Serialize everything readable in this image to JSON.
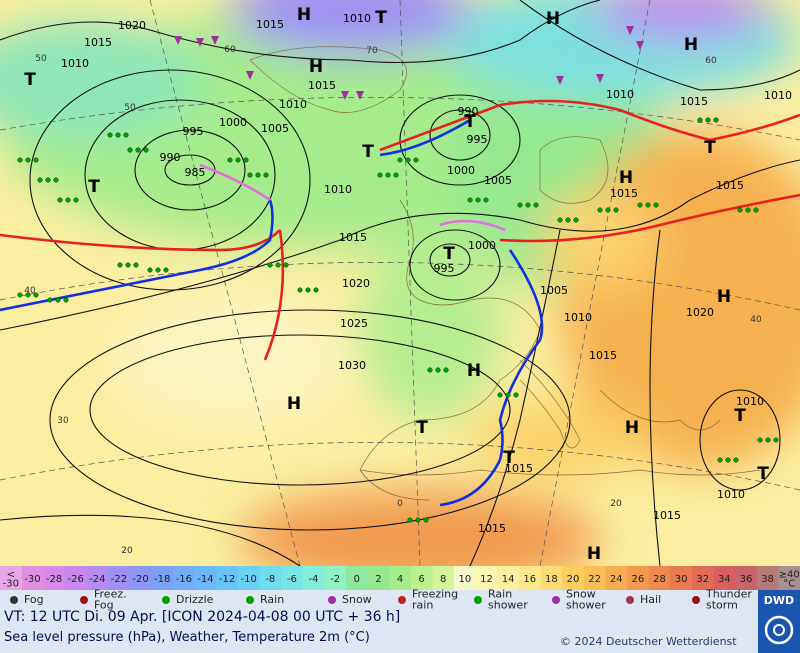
{
  "map": {
    "isobar_labels": [
      "1020",
      "1015",
      "1015",
      "1010",
      "1010",
      "1015",
      "1010",
      "1000",
      "995",
      "1005",
      "990",
      "985",
      "990",
      "995",
      "1000",
      "1005",
      "1010",
      "1015",
      "1020",
      "1025",
      "1030",
      "995",
      "1000",
      "1005",
      "1010",
      "1015",
      "1020",
      "1010",
      "1015",
      "1010",
      "1015",
      "1015",
      "1010",
      "1010",
      "1015",
      "1015",
      "1015"
    ],
    "centers": [
      "H",
      "T",
      "H",
      "H",
      "T",
      "H",
      "T",
      "T",
      "T",
      "H",
      "T",
      "T",
      "H",
      "H",
      "T",
      "H",
      "H",
      "T",
      "T",
      "T",
      "H"
    ],
    "isotherm_labels": [
      "60",
      "70",
      "60",
      "50",
      "50",
      "40",
      "30",
      "20",
      "40",
      "20",
      "0"
    ]
  },
  "colorbar": {
    "min_label": "<\n-30",
    "max_label": "≥40\n°C",
    "min_color": "#e8a6e8",
    "max_color": "#a89090",
    "labels": [
      "-30",
      "-28",
      "-26",
      "-24",
      "-22",
      "-20",
      "-18",
      "-16",
      "-14",
      "-12",
      "-10",
      "-8",
      "-6",
      "-4",
      "-2",
      "0",
      "2",
      "4",
      "6",
      "8",
      "10",
      "12",
      "14",
      "16",
      "18",
      "20",
      "22",
      "24",
      "26",
      "28",
      "30",
      "32",
      "34",
      "36",
      "38"
    ],
    "colors": [
      "#e08ee0",
      "#d888e8",
      "#c888ee",
      "#b58cf2",
      "#a090f4",
      "#8c96f6",
      "#7aa0f8",
      "#72acfa",
      "#6ab8fa",
      "#68c4f8",
      "#6ad0f4",
      "#70dcee",
      "#78e6e6",
      "#84eed8",
      "#90f2c4",
      "#8ee8a0",
      "#96e890",
      "#a6ec8c",
      "#baf08e",
      "#d2f49a",
      "#f4f8c8",
      "#fbf6b4",
      "#fcf0a0",
      "#fce88a",
      "#fcdc74",
      "#fcce62",
      "#f9be56",
      "#f6ac50",
      "#f29a4e",
      "#ee8a4e",
      "#e87a52",
      "#e06c58",
      "#d66060",
      "#c8646a",
      "#b87a78"
    ]
  },
  "legend": [
    "Fog",
    "Freez.\nFog",
    "Drizzle",
    "Rain",
    "Snow",
    "Freezing\nrain",
    "Rain\nshower",
    "Snow\nshower",
    "Hail",
    "Thunder\nstorm"
  ],
  "footer": {
    "valid_time": "VT: 12 UTC Di.  09 Apr. [ICON 2024-04-08  00 UTC + 36 h]",
    "description": "Sea level pressure (hPa), Weather, Temperature 2m (°C)",
    "copyright": "© 2024 Deutscher Wetterdienst",
    "logo": "DWD"
  }
}
